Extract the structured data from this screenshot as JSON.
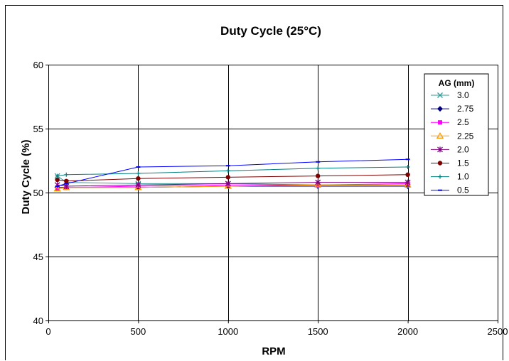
{
  "chart_data": {
    "type": "line",
    "title": "Duty Cycle (25°C)",
    "xlabel": "RPM",
    "ylabel": "Duty Cycle (%)",
    "xlim": [
      0,
      2500
    ],
    "ylim": [
      40,
      60
    ],
    "x_ticks": [
      0,
      500,
      1000,
      1500,
      2000,
      2500
    ],
    "y_ticks": [
      40,
      45,
      50,
      55,
      60
    ],
    "grid": true,
    "legend_title": "AG (mm)",
    "legend_position": "top-right",
    "x": [
      50,
      100,
      500,
      1000,
      1500,
      2000
    ],
    "series": [
      {
        "name": "3.0",
        "color": "#2f9b9b",
        "marker": "x",
        "values": [
          51.3,
          50.8,
          50.7,
          50.7,
          50.6,
          50.6
        ]
      },
      {
        "name": "2.75",
        "color": "#000080",
        "marker": "diamond",
        "values": [
          50.4,
          50.4,
          50.4,
          50.5,
          50.5,
          50.5
        ]
      },
      {
        "name": "2.5",
        "color": "#ff00ff",
        "marker": "square",
        "values": [
          50.3,
          50.4,
          50.5,
          50.6,
          50.6,
          50.7
        ]
      },
      {
        "name": "2.25",
        "color": "#ff9900",
        "marker": "triangle",
        "values": [
          50.3,
          50.4,
          50.4,
          50.5,
          50.6,
          50.6
        ]
      },
      {
        "name": "2.0",
        "color": "#800080",
        "marker": "star",
        "values": [
          50.6,
          50.5,
          50.6,
          50.7,
          50.8,
          50.8
        ]
      },
      {
        "name": "1.5",
        "color": "#800000",
        "marker": "circle",
        "values": [
          51.0,
          50.9,
          51.1,
          51.2,
          51.3,
          51.4
        ]
      },
      {
        "name": "1.0",
        "color": "#008080",
        "marker": "plus",
        "values": [
          51.3,
          51.4,
          51.5,
          51.7,
          51.9,
          52.0
        ]
      },
      {
        "name": "0.5",
        "color": "#0000ff",
        "marker": "dash",
        "values": [
          50.5,
          50.7,
          52.0,
          52.1,
          52.4,
          52.6
        ]
      }
    ]
  }
}
